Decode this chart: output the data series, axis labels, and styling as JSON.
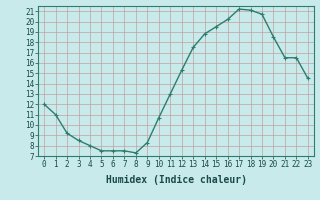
{
  "x": [
    0,
    1,
    2,
    3,
    4,
    5,
    6,
    7,
    8,
    9,
    10,
    11,
    12,
    13,
    14,
    15,
    16,
    17,
    18,
    19,
    20,
    21,
    22,
    23
  ],
  "y": [
    12,
    11,
    9.2,
    8.5,
    8,
    7.5,
    7.5,
    7.5,
    7.3,
    8.3,
    10.7,
    13.0,
    15.3,
    17.5,
    18.8,
    19.5,
    20.2,
    21.2,
    21.1,
    20.7,
    18.5,
    16.5,
    16.5,
    14.5
  ],
  "xlabel": "Humidex (Indice chaleur)",
  "line_color": "#2d7d6e",
  "marker": "+",
  "bg_color": "#c8eaea",
  "grid_color_major": "#c0a0a0",
  "grid_color_minor": "#d8eaea",
  "xlim": [
    -0.5,
    23.5
  ],
  "ylim": [
    7,
    21.5
  ],
  "yticks": [
    7,
    8,
    9,
    10,
    11,
    12,
    13,
    14,
    15,
    16,
    17,
    18,
    19,
    20,
    21
  ],
  "xticks": [
    0,
    1,
    2,
    3,
    4,
    5,
    6,
    7,
    8,
    9,
    10,
    11,
    12,
    13,
    14,
    15,
    16,
    17,
    18,
    19,
    20,
    21,
    22,
    23
  ],
  "xlabel_fontsize": 7,
  "tick_fontsize": 5.5,
  "axis_bg": "#c8eaea",
  "fig_bg": "#c8eaea",
  "linewidth": 1.0,
  "markersize": 3,
  "markeredgewidth": 0.8
}
